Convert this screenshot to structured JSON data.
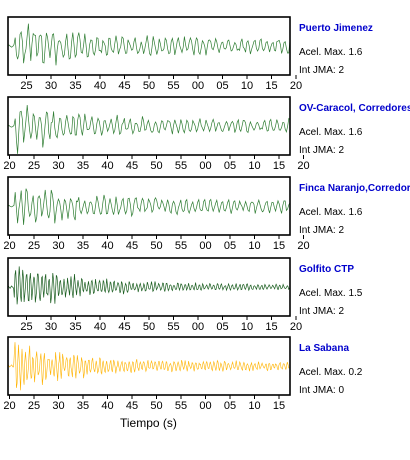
{
  "chart_data": {
    "type": "line",
    "xlabel": "Tiempo (s)",
    "panels": [
      {
        "station": "Puerto Jimenez",
        "accel_label": "Acel. Max. 1.6",
        "jma_label": "Int JMA: 2",
        "color": "#2e7d32",
        "tick_labels": [
          "25",
          "30",
          "35",
          "40",
          "45",
          "50",
          "55",
          "00",
          "05",
          "10",
          "15",
          "20"
        ],
        "tick_start": 25,
        "amp_peak": 0.95,
        "amp_tail": 0.28,
        "seed": 3
      },
      {
        "station": "OV-Caracol, Corredores",
        "accel_label": "Acel. Max. 1.6",
        "jma_label": "Int JMA: 2",
        "color": "#2e7d32",
        "tick_labels": [
          "20",
          "25",
          "30",
          "35",
          "40",
          "45",
          "50",
          "55",
          "00",
          "05",
          "10",
          "15",
          "20"
        ],
        "tick_start": 20,
        "amp_peak": 0.95,
        "amp_tail": 0.25,
        "seed": 7
      },
      {
        "station": "Finca Naranjo,Corredores",
        "accel_label": "Acel. Max. 1.6",
        "jma_label": "Int JMA: 2",
        "color": "#2e7d32",
        "tick_labels": [
          "20",
          "25",
          "30",
          "35",
          "40",
          "45",
          "50",
          "55",
          "00",
          "05",
          "10",
          "15",
          "20"
        ],
        "tick_start": 20,
        "amp_peak": 0.95,
        "amp_tail": 0.25,
        "seed": 11
      },
      {
        "station": "Golfito CTP",
        "accel_label": "Acel. Max. 1.5",
        "jma_label": "Int JMA: 2",
        "color": "#1b5e20",
        "tick_labels": [
          "25",
          "30",
          "35",
          "40",
          "45",
          "50",
          "55",
          "00",
          "05",
          "10",
          "15",
          "20"
        ],
        "tick_start": 25,
        "amp_peak": 0.95,
        "amp_tail": 0.1,
        "seed": 19
      },
      {
        "station": "La Sabana",
        "accel_label": "Acel. Max. 0.2",
        "jma_label": "Int JMA: 0",
        "color": "#ffb300",
        "tick_labels": [
          "20",
          "25",
          "30",
          "35",
          "40",
          "45",
          "50",
          "55",
          "00",
          "05",
          "10",
          "15"
        ],
        "tick_start": 20,
        "amp_peak": 0.95,
        "amp_tail": 0.15,
        "seed": 23
      }
    ]
  }
}
